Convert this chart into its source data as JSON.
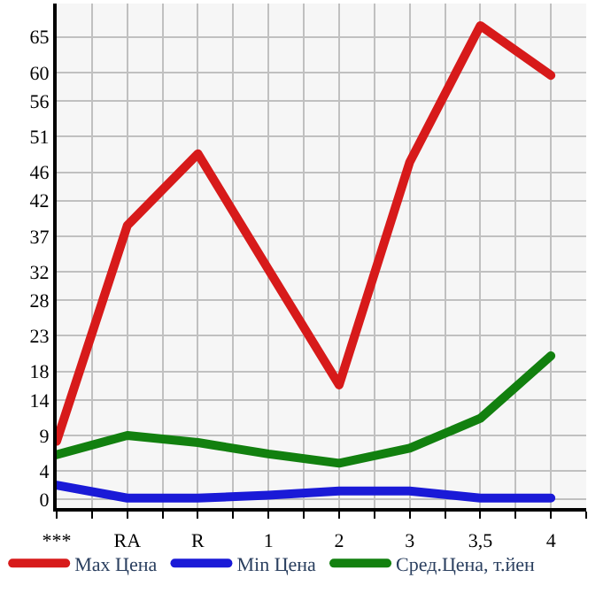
{
  "chart_data": {
    "type": "line",
    "categories": [
      "***",
      "RA",
      "R",
      "1",
      "2",
      "3",
      "3,5",
      "4"
    ],
    "series": [
      {
        "name": "Max Цена",
        "color": "#d71a1a",
        "values": [
          8.2,
          38.5,
          48.6,
          32.3,
          16.1,
          47.4,
          66.6,
          59.6
        ]
      },
      {
        "name": "Min Цена",
        "color": "#1a1ad7",
        "values": [
          2.0,
          0.2,
          0.2,
          0.6,
          1.2,
          1.2,
          0.2,
          0.2
        ]
      },
      {
        "name": "Сред.Цена, т.йен",
        "color": "#12800f",
        "values": [
          6.3,
          9.0,
          8.0,
          6.4,
          5.1,
          7.2,
          11.4,
          20.2
        ]
      }
    ],
    "ylim": [
      -1.2,
      69.7
    ],
    "yticks": [
      0,
      4,
      9,
      14,
      18,
      23,
      28,
      32,
      37,
      42,
      46,
      51,
      56,
      60,
      65
    ],
    "grid": true,
    "legend": "bottom",
    "marker": "none",
    "line_style": "solid"
  }
}
